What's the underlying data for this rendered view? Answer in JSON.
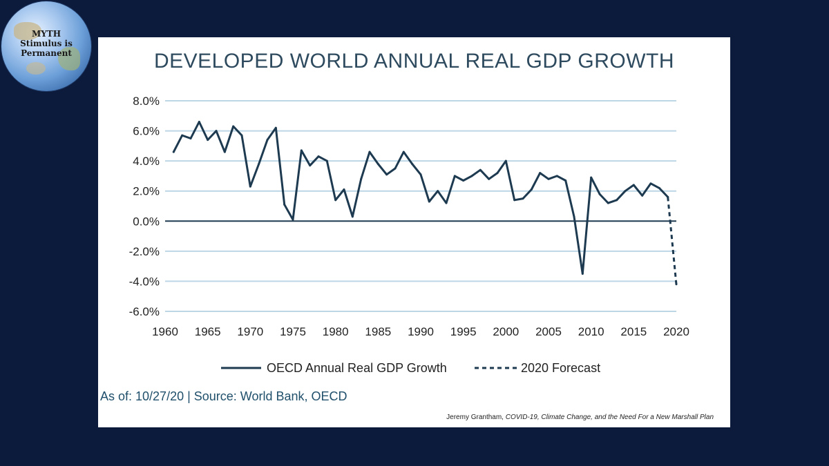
{
  "badge": {
    "line1": "MYTH",
    "line2": "Stimulus is",
    "line3": "Permanent"
  },
  "colors": {
    "background": "#0c1a3c",
    "panel": "#ffffff",
    "series": "#1d3a50",
    "grid": "#bcd6e6",
    "title": "#2e4a5e",
    "source": "#1f4f6b"
  },
  "chart_data": {
    "type": "line",
    "title": "DEVELOPED WORLD ANNUAL REAL GDP GROWTH",
    "xlabel": "",
    "ylabel": "",
    "xlim": [
      1960,
      2020
    ],
    "ylim": [
      -6.0,
      8.0
    ],
    "xticks": [
      "1960",
      "1965",
      "1970",
      "1975",
      "1980",
      "1985",
      "1990",
      "1995",
      "2000",
      "2005",
      "2010",
      "2015",
      "2020"
    ],
    "yticks": [
      "8.0%",
      "6.0%",
      "4.0%",
      "2.0%",
      "0.0%",
      "-2.0%",
      "-4.0%",
      "-6.0%"
    ],
    "grid": true,
    "legend_position": "bottom",
    "series": [
      {
        "name": "OECD Annual Real GDP Growth",
        "style": "solid",
        "x": [
          1961,
          1962,
          1963,
          1964,
          1965,
          1966,
          1967,
          1968,
          1969,
          1970,
          1971,
          1972,
          1973,
          1974,
          1975,
          1976,
          1977,
          1978,
          1979,
          1980,
          1981,
          1982,
          1983,
          1984,
          1985,
          1986,
          1987,
          1988,
          1989,
          1990,
          1991,
          1992,
          1993,
          1994,
          1995,
          1996,
          1997,
          1998,
          1999,
          2000,
          2001,
          2002,
          2003,
          2004,
          2005,
          2006,
          2007,
          2008,
          2009,
          2010,
          2011,
          2012,
          2013,
          2014,
          2015,
          2016,
          2017,
          2018,
          2019
        ],
        "values": [
          4.6,
          5.7,
          5.5,
          6.6,
          5.4,
          6.0,
          4.6,
          6.3,
          5.7,
          2.3,
          3.8,
          5.4,
          6.2,
          1.1,
          0.1,
          4.7,
          3.7,
          4.3,
          4.0,
          1.4,
          2.1,
          0.3,
          2.8,
          4.6,
          3.8,
          3.1,
          3.5,
          4.6,
          3.8,
          3.1,
          1.3,
          2.0,
          1.2,
          3.0,
          2.7,
          3.0,
          3.4,
          2.8,
          3.2,
          4.0,
          1.4,
          1.5,
          2.1,
          3.2,
          2.8,
          3.0,
          2.7,
          0.3,
          -3.5,
          2.9,
          1.8,
          1.2,
          1.4,
          2.0,
          2.4,
          1.7,
          2.5,
          2.2,
          1.6
        ]
      },
      {
        "name": "2020 Forecast",
        "style": "dashed",
        "x": [
          2019,
          2020
        ],
        "values": [
          1.6,
          -4.2
        ]
      }
    ]
  },
  "source_text": "As of: 10/27/20 | Source: World Bank, OECD",
  "credit": {
    "author": "Jeremy Grantham, ",
    "work": "COVID-19, Climate Change, and the Need For a New Marshall Plan"
  }
}
